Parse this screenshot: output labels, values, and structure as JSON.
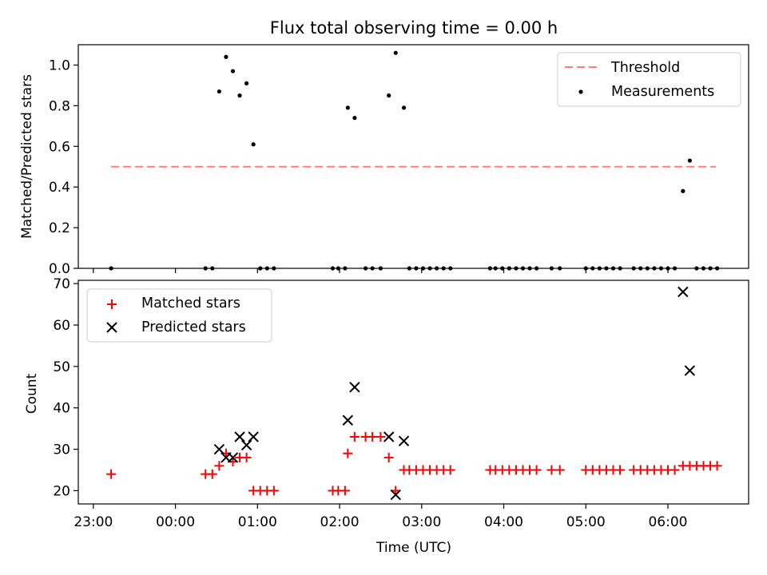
{
  "chart_data": [
    {
      "type": "scatter",
      "title": "Flux total observing time = 0.00 h",
      "ylabel": "Matched/Predicted stars",
      "xlabel": "",
      "ylim": [
        0,
        1.1
      ],
      "xlim": [
        "22:49",
        "06:59"
      ],
      "x_ticks": [],
      "y_ticks": [
        {
          "value": 0.0,
          "label": "0.0"
        },
        {
          "value": 0.2,
          "label": "0.2"
        },
        {
          "value": 0.4,
          "label": "0.4"
        },
        {
          "value": 0.6,
          "label": "0.6"
        },
        {
          "value": 0.8,
          "label": "0.8"
        },
        {
          "value": 1.0,
          "label": "1.0"
        }
      ],
      "legend": {
        "placement": "top-right",
        "entries": [
          "Threshold",
          "Measurements"
        ]
      },
      "threshold": {
        "name": "Threshold",
        "value": 0.5,
        "x_start": "23:13",
        "x_end": "06:35",
        "color": "#ff7f7f",
        "style": "dashed"
      },
      "measurements": {
        "name": "Measurements",
        "color": "#000000",
        "points": [
          [
            "23:13",
            0.0
          ],
          [
            "00:22",
            0.0
          ],
          [
            "00:27",
            0.0
          ],
          [
            "00:32",
            0.87
          ],
          [
            "00:37",
            1.04
          ],
          [
            "00:42",
            0.97
          ],
          [
            "00:47",
            0.85
          ],
          [
            "00:52",
            0.91
          ],
          [
            "00:57",
            0.61
          ],
          [
            "01:02",
            0.0
          ],
          [
            "01:07",
            0.0
          ],
          [
            "01:12",
            0.0
          ],
          [
            "01:55",
            0.0
          ],
          [
            "01:59",
            0.0
          ],
          [
            "02:04",
            0.0
          ],
          [
            "02:06",
            0.79
          ],
          [
            "02:11",
            0.74
          ],
          [
            "02:19",
            0.0
          ],
          [
            "02:24",
            0.0
          ],
          [
            "02:30",
            0.0
          ],
          [
            "02:36",
            0.85
          ],
          [
            "02:41",
            1.06
          ],
          [
            "02:47",
            0.79
          ],
          [
            "02:51",
            0.0
          ],
          [
            "02:56",
            0.0
          ],
          [
            "03:01",
            0.0
          ],
          [
            "03:06",
            0.0
          ],
          [
            "03:11",
            0.0
          ],
          [
            "03:16",
            0.0
          ],
          [
            "03:21",
            0.0
          ],
          [
            "03:50",
            0.0
          ],
          [
            "03:54",
            0.0
          ],
          [
            "03:59",
            0.0
          ],
          [
            "04:04",
            0.0
          ],
          [
            "04:09",
            0.0
          ],
          [
            "04:14",
            0.0
          ],
          [
            "04:19",
            0.0
          ],
          [
            "04:24",
            0.0
          ],
          [
            "04:35",
            0.0
          ],
          [
            "04:41",
            0.0
          ],
          [
            "05:00",
            0.0
          ],
          [
            "05:05",
            0.0
          ],
          [
            "05:10",
            0.0
          ],
          [
            "05:15",
            0.0
          ],
          [
            "05:20",
            0.0
          ],
          [
            "05:25",
            0.0
          ],
          [
            "05:35",
            0.0
          ],
          [
            "05:40",
            0.0
          ],
          [
            "05:45",
            0.0
          ],
          [
            "05:50",
            0.0
          ],
          [
            "05:55",
            0.0
          ],
          [
            "06:00",
            0.0
          ],
          [
            "06:05",
            0.0
          ],
          [
            "06:11",
            0.38
          ],
          [
            "06:16",
            0.53
          ],
          [
            "06:21",
            0.0
          ],
          [
            "06:26",
            0.0
          ],
          [
            "06:31",
            0.0
          ],
          [
            "06:36",
            0.0
          ]
        ]
      }
    },
    {
      "type": "scatter",
      "xlabel": "Time (UTC)",
      "ylabel": "Count",
      "ylim": [
        16.8,
        70.8
      ],
      "xlim": [
        "22:49",
        "06:59"
      ],
      "x_ticks": [
        "23:00",
        "00:00",
        "01:00",
        "02:00",
        "03:00",
        "04:00",
        "05:00",
        "06:00"
      ],
      "y_ticks": [
        20,
        30,
        40,
        50,
        60,
        70
      ],
      "legend": {
        "placement": "top-left",
        "entries": [
          "Matched stars",
          "Predicted stars"
        ]
      },
      "series": [
        {
          "name": "Matched stars",
          "marker": "+",
          "color": "#ff0000",
          "points": [
            [
              "23:13",
              24
            ],
            [
              "00:22",
              24
            ],
            [
              "00:27",
              24
            ],
            [
              "00:32",
              26
            ],
            [
              "00:37",
              29
            ],
            [
              "00:42",
              27
            ],
            [
              "00:47",
              28
            ],
            [
              "00:52",
              28
            ],
            [
              "00:57",
              20
            ],
            [
              "01:02",
              20
            ],
            [
              "01:07",
              20
            ],
            [
              "01:12",
              20
            ],
            [
              "01:55",
              20
            ],
            [
              "01:59",
              20
            ],
            [
              "02:04",
              20
            ],
            [
              "02:06",
              29
            ],
            [
              "02:11",
              33
            ],
            [
              "02:19",
              33
            ],
            [
              "02:24",
              33
            ],
            [
              "02:30",
              33
            ],
            [
              "02:36",
              28
            ],
            [
              "02:41",
              20
            ],
            [
              "02:47",
              25
            ],
            [
              "02:51",
              25
            ],
            [
              "02:56",
              25
            ],
            [
              "03:01",
              25
            ],
            [
              "03:06",
              25
            ],
            [
              "03:11",
              25
            ],
            [
              "03:16",
              25
            ],
            [
              "03:21",
              25
            ],
            [
              "03:50",
              25
            ],
            [
              "03:54",
              25
            ],
            [
              "03:59",
              25
            ],
            [
              "04:04",
              25
            ],
            [
              "04:09",
              25
            ],
            [
              "04:14",
              25
            ],
            [
              "04:19",
              25
            ],
            [
              "04:24",
              25
            ],
            [
              "04:35",
              25
            ],
            [
              "04:41",
              25
            ],
            [
              "05:00",
              25
            ],
            [
              "05:05",
              25
            ],
            [
              "05:10",
              25
            ],
            [
              "05:15",
              25
            ],
            [
              "05:20",
              25
            ],
            [
              "05:25",
              25
            ],
            [
              "05:35",
              25
            ],
            [
              "05:40",
              25
            ],
            [
              "05:45",
              25
            ],
            [
              "05:50",
              25
            ],
            [
              "05:55",
              25
            ],
            [
              "06:00",
              25
            ],
            [
              "06:05",
              25
            ],
            [
              "06:11",
              26
            ],
            [
              "06:16",
              26
            ],
            [
              "06:21",
              26
            ],
            [
              "06:26",
              26
            ],
            [
              "06:31",
              26
            ],
            [
              "06:36",
              26
            ]
          ]
        },
        {
          "name": "Predicted stars",
          "marker": "x",
          "color": "#000000",
          "points": [
            [
              "00:32",
              30
            ],
            [
              "00:37",
              28
            ],
            [
              "00:42",
              28
            ],
            [
              "00:47",
              33
            ],
            [
              "00:52",
              31
            ],
            [
              "00:57",
              33
            ],
            [
              "02:06",
              37
            ],
            [
              "02:11",
              45
            ],
            [
              "02:36",
              33
            ],
            [
              "02:41",
              19
            ],
            [
              "02:47",
              32
            ],
            [
              "06:11",
              68
            ],
            [
              "06:16",
              49
            ]
          ]
        }
      ]
    }
  ]
}
